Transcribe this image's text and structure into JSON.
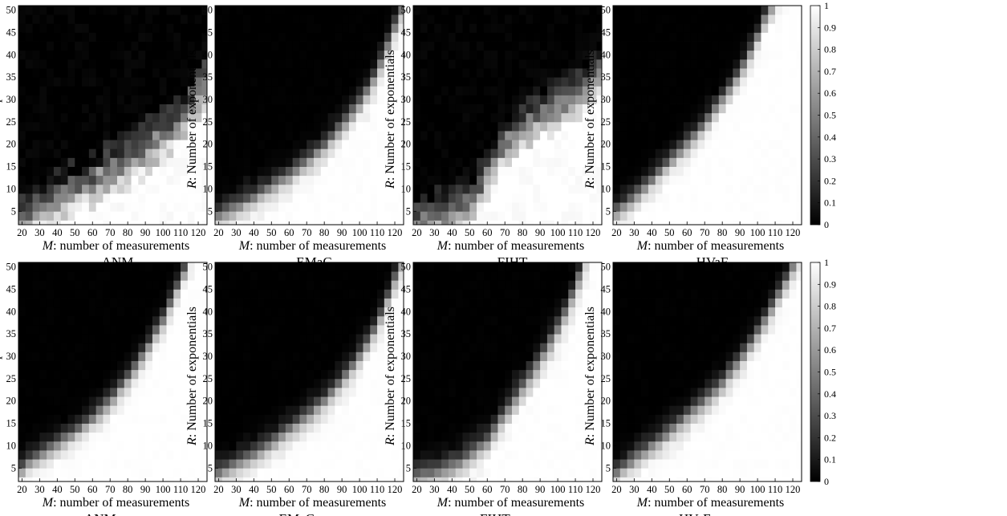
{
  "chart_data": [
    {
      "type": "heatmap",
      "title": "ANM",
      "method": "anm",
      "boundary": [
        [
          20,
          4
        ],
        [
          30,
          7
        ],
        [
          40,
          9
        ],
        [
          50,
          11
        ],
        [
          60,
          13
        ],
        [
          70,
          15.5
        ],
        [
          80,
          17.5
        ],
        [
          90,
          20
        ],
        [
          100,
          23
        ],
        [
          110,
          27
        ],
        [
          120,
          33
        ]
      ],
      "diffuse": 1.0,
      "band": 1.6,
      "noise": 0.35
    },
    {
      "type": "heatmap",
      "title": "EMaC",
      "method": "emac",
      "boundary": [
        [
          20,
          4
        ],
        [
          30,
          6
        ],
        [
          40,
          8
        ],
        [
          50,
          10.5
        ],
        [
          60,
          13
        ],
        [
          70,
          16
        ],
        [
          80,
          19.5
        ],
        [
          90,
          24
        ],
        [
          100,
          29
        ],
        [
          110,
          36
        ],
        [
          120,
          46
        ]
      ],
      "diffuse": 0.0,
      "band": 1.4,
      "noise": 0.1
    },
    {
      "type": "heatmap",
      "title": "FIHT",
      "method": "fiht",
      "boundary": [
        [
          20,
          3
        ],
        [
          30,
          4
        ],
        [
          40,
          5
        ],
        [
          50,
          8
        ],
        [
          55,
          10
        ],
        [
          60,
          14
        ],
        [
          70,
          21
        ],
        [
          80,
          24
        ],
        [
          90,
          27
        ],
        [
          100,
          29
        ],
        [
          110,
          31
        ],
        [
          120,
          35
        ]
      ],
      "diffuse": 0.7,
      "band": 1.8,
      "noise": 0.3
    },
    {
      "type": "heatmap",
      "title": "HVaF",
      "method": "hvaf",
      "boundary": [
        [
          20,
          5
        ],
        [
          30,
          8
        ],
        [
          40,
          12
        ],
        [
          50,
          16
        ],
        [
          60,
          20
        ],
        [
          70,
          24.5
        ],
        [
          80,
          30
        ],
        [
          90,
          36
        ],
        [
          100,
          44
        ],
        [
          105,
          49
        ],
        [
          110,
          52
        ]
      ],
      "diffuse": 0.0,
      "band": 1.3,
      "noise": 0.08
    },
    {
      "type": "heatmap",
      "title": "ANM w sep",
      "method": "anm_sep",
      "boundary": [
        [
          20,
          5
        ],
        [
          30,
          8
        ],
        [
          40,
          10.5
        ],
        [
          50,
          13
        ],
        [
          60,
          16
        ],
        [
          70,
          20
        ],
        [
          80,
          25
        ],
        [
          90,
          31
        ],
        [
          100,
          38
        ],
        [
          110,
          47
        ],
        [
          115,
          52
        ]
      ],
      "diffuse": 0.0,
      "band": 1.3,
      "noise": 0.08
    },
    {
      "type": "heatmap",
      "title": "EMaC w sep",
      "method": "emac_sep",
      "boundary": [
        [
          20,
          4
        ],
        [
          30,
          6
        ],
        [
          40,
          8
        ],
        [
          50,
          10.5
        ],
        [
          60,
          13.5
        ],
        [
          70,
          16.5
        ],
        [
          80,
          20
        ],
        [
          90,
          24.5
        ],
        [
          100,
          30
        ],
        [
          110,
          37
        ],
        [
          120,
          47
        ]
      ],
      "diffuse": 0.0,
      "band": 1.4,
      "noise": 0.08
    },
    {
      "type": "heatmap",
      "title": "FIHT w sep",
      "method": "fiht_sep",
      "boundary": [
        [
          20,
          3
        ],
        [
          30,
          4
        ],
        [
          40,
          5.5
        ],
        [
          50,
          7.5
        ],
        [
          60,
          11
        ],
        [
          70,
          17
        ],
        [
          80,
          23
        ],
        [
          90,
          29
        ],
        [
          100,
          36
        ],
        [
          110,
          45
        ],
        [
          115,
          51
        ]
      ],
      "diffuse": 0.0,
      "band": 1.6,
      "noise": 0.1
    },
    {
      "type": "heatmap",
      "title": "HVaF w sep",
      "method": "hvaf_sep",
      "boundary": [
        [
          20,
          4
        ],
        [
          30,
          7
        ],
        [
          40,
          10
        ],
        [
          50,
          13
        ],
        [
          60,
          16.5
        ],
        [
          70,
          20
        ],
        [
          80,
          24
        ],
        [
          90,
          29
        ],
        [
          100,
          35
        ],
        [
          110,
          42
        ],
        [
          120,
          50
        ]
      ],
      "diffuse": 0.0,
      "band": 1.4,
      "noise": 0.08
    }
  ],
  "shared": {
    "xlabel_prefix": "M",
    "xlabel_rest": ": number of measurements",
    "ylabel_prefix": "R",
    "ylabel_rest": ": Number of exponentials",
    "x_ticks": [
      20,
      30,
      40,
      50,
      60,
      70,
      80,
      90,
      100,
      110,
      120
    ],
    "y_ticks": [
      5,
      10,
      15,
      20,
      25,
      30,
      35,
      40,
      45,
      50
    ],
    "xlim": [
      18,
      125
    ],
    "ylim": [
      2,
      51
    ],
    "cmap": "gray",
    "colorbar_ticks": [
      0,
      0.1,
      0.2,
      0.3,
      0.4,
      0.5,
      0.6,
      0.7,
      0.8,
      0.9,
      1
    ],
    "colorbar_range": [
      0,
      1
    ]
  }
}
